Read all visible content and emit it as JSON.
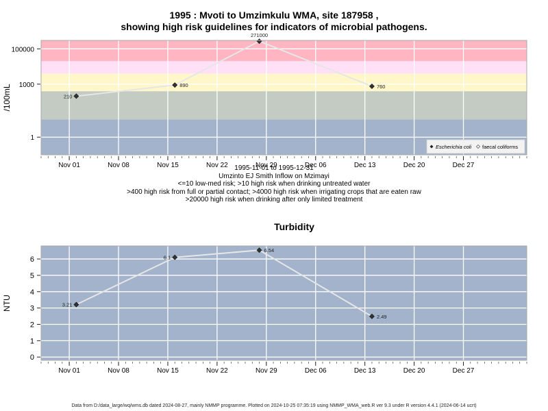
{
  "page": {
    "title_line1": "1995 : Mvoti to Umzimkulu WMA, site 187958 ,",
    "title_line2": "showing high risk guidelines for indicators of microbial pathogens.",
    "caption": [
      "1995-11-01 to 1995-12-31",
      "Umzinto EJ Smith Inflow on Mzimayi",
      "<=10 low-med risk; >10 high risk when drinking untreated water",
      ">400 high risk from full or partial contact; >4000 high risk when irrigating crops that are eaten raw",
      ">20000 high risk when drinking after only limited treatment"
    ],
    "footer": "Data from D:/data_large/wq/wms.db dated 2024-08-27, mainly NMMP programme. Plotted on 2024-10-25 07:35:19 using NMMP_WMA_web.R ver 9.3 under R version 4.4.1 (2024-06-14 ucrt)"
  },
  "chart_data": [
    {
      "type": "line",
      "title": "",
      "ylabel": "/100mL",
      "xlabel": "",
      "y_scale": "log10",
      "ylim": [
        0.1,
        300000
      ],
      "x_tick_labels": [
        "Nov 01",
        "Nov 08",
        "Nov 15",
        "Nov 22",
        "Nov 29",
        "Dec 06",
        "Dec 13",
        "Dec 20",
        "Dec 27"
      ],
      "x_ticks": [
        "1995-11-01",
        "1995-11-08",
        "1995-11-15",
        "1995-11-22",
        "1995-11-29",
        "1995-12-06",
        "1995-12-13",
        "1995-12-20",
        "1995-12-27"
      ],
      "xlim": [
        "1995-10-28",
        "1996-01-05"
      ],
      "y_tick_labels": [
        "1",
        "1000",
        "100000"
      ],
      "y_ticks": [
        1,
        1000,
        100000
      ],
      "grid": true,
      "risk_bands": [
        {
          "from": 0.1,
          "to": 10,
          "color": "#a2b3cb"
        },
        {
          "from": 10,
          "to": 400,
          "color": "#c3cbc2"
        },
        {
          "from": 400,
          "to": 4000,
          "color": "#fff6ca"
        },
        {
          "from": 4000,
          "to": 20000,
          "color": "#ffe0f6"
        },
        {
          "from": 20000,
          "to": 300000,
          "color": "#ffb5c2"
        }
      ],
      "series": [
        {
          "name": "Escherichia coli",
          "marker": "filled-diamond",
          "points": [
            {
              "x": "1995-11-02",
              "y": 210,
              "label": "210",
              "label_side": "left"
            },
            {
              "x": "1995-11-16",
              "y": 890,
              "label": "890",
              "label_side": "right"
            },
            {
              "x": "1995-11-28",
              "y": 271000,
              "label": "271000",
              "label_side": "top"
            },
            {
              "x": "1995-12-14",
              "y": 760,
              "label": "760",
              "label_side": "right"
            }
          ]
        }
      ],
      "legend": {
        "position": "bottom-right",
        "items": [
          {
            "label": "Escherichia coli",
            "marker": "filled-diamond",
            "italic": true
          },
          {
            "label": "faecal coliforms",
            "marker": "open-diamond",
            "italic": false
          }
        ]
      }
    },
    {
      "type": "line",
      "title": "Turbidity",
      "ylabel": "NTU",
      "xlabel": "",
      "y_scale": "linear",
      "ylim": [
        -0.2,
        6.8
      ],
      "x_tick_labels": [
        "Nov 01",
        "Nov 08",
        "Nov 15",
        "Nov 22",
        "Nov 29",
        "Dec 06",
        "Dec 13",
        "Dec 20",
        "Dec 27"
      ],
      "x_ticks": [
        "1995-11-01",
        "1995-11-08",
        "1995-11-15",
        "1995-11-22",
        "1995-11-29",
        "1995-12-06",
        "1995-12-13",
        "1995-12-20",
        "1995-12-27"
      ],
      "xlim": [
        "1995-10-28",
        "1996-01-05"
      ],
      "y_tick_labels": [
        "0",
        "1",
        "2",
        "3",
        "4",
        "5",
        "6"
      ],
      "y_ticks": [
        0,
        1,
        2,
        3,
        4,
        5,
        6
      ],
      "grid": true,
      "background": "#a2b3cb",
      "series": [
        {
          "name": "",
          "marker": "filled-diamond",
          "points": [
            {
              "x": "1995-11-02",
              "y": 3.21,
              "label": "3.21",
              "label_side": "left"
            },
            {
              "x": "1995-11-16",
              "y": 6.1,
              "label": "6.1",
              "label_side": "left"
            },
            {
              "x": "1995-11-28",
              "y": 6.54,
              "label": "6.54",
              "label_side": "right"
            },
            {
              "x": "1995-12-14",
              "y": 2.49,
              "label": "2.49",
              "label_side": "right"
            }
          ]
        }
      ]
    }
  ]
}
